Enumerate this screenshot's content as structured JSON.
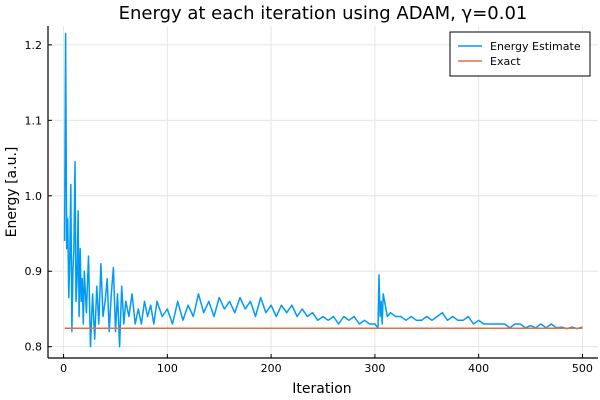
{
  "chart_data": {
    "type": "line",
    "title": "Energy at each iteration using ADAM, γ=0.01",
    "xlabel": "Iteration",
    "ylabel": "Energy [a.u.]",
    "xlim": [
      -15,
      515
    ],
    "ylim": [
      0.785,
      1.225
    ],
    "xticks": [
      0,
      100,
      200,
      300,
      400,
      500
    ],
    "xtick_labels": [
      "0",
      "100",
      "200",
      "300",
      "400",
      "500"
    ],
    "yticks": [
      0.8,
      0.9,
      1.0,
      1.1,
      1.2
    ],
    "ytick_labels": [
      "0.8",
      "0.9",
      "1.0",
      "1.1",
      "1.2"
    ],
    "grid": true,
    "legend_position": "top-right",
    "colors": {
      "energy": "#009af9",
      "exact": "#e26f46"
    },
    "series": [
      {
        "name": "Energy Estimate",
        "color": "#009af9",
        "x": [
          1,
          2,
          3,
          4,
          5,
          6,
          7,
          8,
          9,
          10,
          11,
          12,
          13,
          14,
          15,
          16,
          17,
          18,
          19,
          20,
          22,
          24,
          26,
          28,
          30,
          32,
          34,
          36,
          38,
          40,
          42,
          44,
          46,
          48,
          50,
          52,
          54,
          56,
          58,
          60,
          63,
          66,
          69,
          72,
          75,
          78,
          81,
          84,
          87,
          90,
          95,
          100,
          105,
          110,
          115,
          120,
          125,
          130,
          135,
          140,
          145,
          150,
          155,
          160,
          165,
          170,
          175,
          180,
          185,
          190,
          195,
          200,
          205,
          210,
          215,
          220,
          225,
          230,
          235,
          240,
          245,
          250,
          255,
          260,
          265,
          270,
          275,
          280,
          285,
          290,
          295,
          300,
          303,
          304,
          305,
          306,
          307,
          308,
          310,
          312,
          315,
          320,
          325,
          330,
          335,
          340,
          345,
          350,
          355,
          360,
          365,
          370,
          375,
          380,
          385,
          390,
          395,
          400,
          405,
          410,
          415,
          420,
          425,
          430,
          435,
          440,
          445,
          450,
          455,
          460,
          465,
          470,
          475,
          480,
          485,
          490,
          495,
          500
        ],
        "y": [
          0.94,
          1.215,
          0.93,
          0.97,
          0.865,
          0.92,
          1.015,
          0.82,
          0.9,
          0.93,
          1.045,
          0.86,
          0.89,
          0.98,
          0.84,
          0.93,
          0.86,
          0.89,
          0.83,
          0.9,
          0.845,
          0.92,
          0.8,
          0.87,
          0.81,
          0.88,
          0.83,
          0.91,
          0.84,
          0.86,
          0.89,
          0.82,
          0.87,
          0.905,
          0.82,
          0.87,
          0.8,
          0.88,
          0.83,
          0.86,
          0.84,
          0.87,
          0.83,
          0.85,
          0.83,
          0.86,
          0.84,
          0.855,
          0.83,
          0.86,
          0.84,
          0.85,
          0.83,
          0.86,
          0.835,
          0.855,
          0.84,
          0.87,
          0.845,
          0.86,
          0.84,
          0.865,
          0.85,
          0.86,
          0.845,
          0.865,
          0.85,
          0.86,
          0.84,
          0.865,
          0.845,
          0.855,
          0.84,
          0.855,
          0.845,
          0.855,
          0.84,
          0.85,
          0.84,
          0.845,
          0.835,
          0.84,
          0.835,
          0.84,
          0.83,
          0.84,
          0.835,
          0.84,
          0.83,
          0.835,
          0.83,
          0.83,
          0.825,
          0.895,
          0.84,
          0.86,
          0.83,
          0.87,
          0.855,
          0.84,
          0.845,
          0.84,
          0.84,
          0.835,
          0.84,
          0.835,
          0.835,
          0.84,
          0.835,
          0.84,
          0.845,
          0.835,
          0.84,
          0.835,
          0.835,
          0.84,
          0.83,
          0.835,
          0.83,
          0.83,
          0.83,
          0.83,
          0.83,
          0.825,
          0.83,
          0.83,
          0.825,
          0.828,
          0.825,
          0.83,
          0.825,
          0.83,
          0.825,
          0.826,
          0.824,
          0.826,
          0.824,
          0.826
        ]
      },
      {
        "name": "Exact",
        "color": "#e26f46",
        "x": [
          1,
          500
        ],
        "y": [
          0.8245,
          0.8245
        ]
      }
    ]
  }
}
